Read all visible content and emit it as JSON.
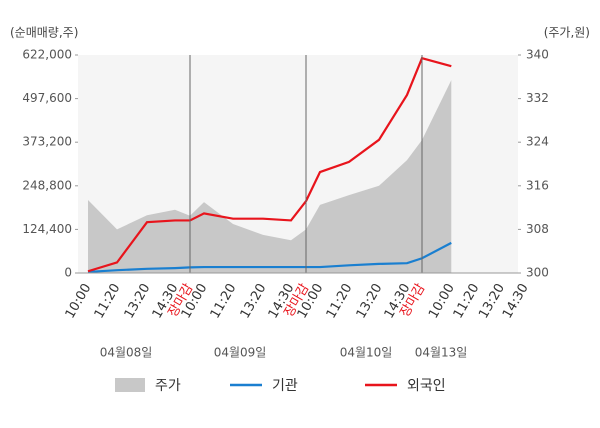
{
  "chart_data": {
    "type": "combo",
    "y_label": "(순매매량,주)",
    "y2_label": "(주가,원)",
    "categories": [
      "10:00",
      "11:20",
      "13:20",
      "14:30",
      "장마감",
      "10:00",
      "11:20",
      "13:20",
      "14:30",
      "장마감",
      "10:00",
      "11:20",
      "13:20",
      "14:30",
      "장마감",
      "10:00",
      "11:20",
      "13:20",
      "14:30"
    ],
    "category_colors": [
      "#333",
      "#333",
      "#333",
      "#333",
      "#e8141c",
      "#333",
      "#333",
      "#333",
      "#333",
      "#e8141c",
      "#333",
      "#333",
      "#333",
      "#333",
      "#e8141c",
      "#333",
      "#333",
      "#333",
      "#333"
    ],
    "dates": [
      "04월08일",
      "04월09일",
      "04월10일",
      "04월13일"
    ],
    "series": [
      {
        "name": "주가",
        "type": "area",
        "axis": "y2",
        "color": "#c8c8c8",
        "values": [
          313.4,
          308,
          310.6,
          311.6,
          310.5,
          313,
          309,
          307,
          306,
          308,
          312.5,
          314.3,
          316,
          320.7,
          324.4,
          335.4,
          null,
          null,
          null
        ]
      },
      {
        "name": "기관",
        "type": "line",
        "axis": "y",
        "color": "#1a7fd0",
        "values": [
          3000,
          8000,
          12000,
          14000,
          16000,
          17000,
          17000,
          17000,
          17000,
          17000,
          17000,
          22000,
          26000,
          28000,
          42000,
          86000,
          null,
          null,
          null
        ]
      },
      {
        "name": "외국인",
        "type": "line",
        "axis": "y",
        "color": "#e8141c",
        "values": [
          5000,
          30000,
          145000,
          150000,
          150000,
          170000,
          155000,
          155000,
          150000,
          205000,
          288000,
          317000,
          380000,
          508000,
          613000,
          590000,
          null,
          null,
          null
        ]
      }
    ],
    "ylim": [
      0,
      622000
    ],
    "yticks": [
      0,
      {
        "value": 124400,
        "label": "124,400"
      },
      {
        "value": 248800,
        "label": "248,800"
      },
      {
        "value": 373200,
        "label": "373,200"
      },
      {
        "value": 497600,
        "label": "497,600"
      },
      {
        "value": 622000,
        "label": "622,000"
      }
    ],
    "y2lim": [
      300,
      340
    ],
    "y2ticks": [
      300,
      308,
      316,
      324,
      332,
      340
    ],
    "separator_color": "#666"
  }
}
